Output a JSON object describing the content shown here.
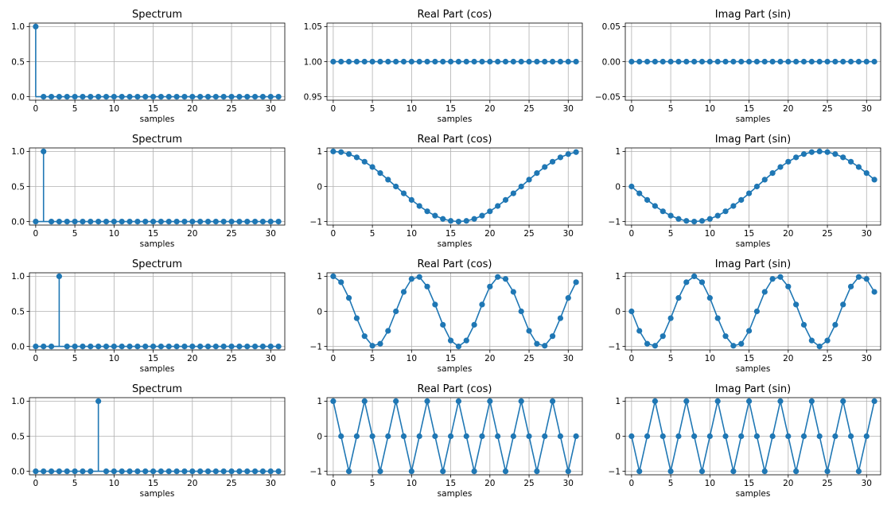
{
  "figure": {
    "panel_color": "#1f77b4",
    "grid": true
  },
  "chart_data": [
    {
      "type": "stem",
      "title": "Spectrum",
      "xlabel": "samples",
      "x_range": [
        0,
        31
      ],
      "xlim": [
        -0.8,
        31.8
      ],
      "ylim": [
        -0.05,
        1.05
      ],
      "xticks": [
        0,
        5,
        10,
        15,
        20,
        25,
        30
      ],
      "yticks": [
        0,
        0.5,
        1
      ],
      "ytick_labels": [
        "0.0",
        "0.5",
        "1.0"
      ],
      "k": 0,
      "values_at_k": 1,
      "values_elsewhere": 0
    },
    {
      "type": "line",
      "title": "Real Part (cos)",
      "xlabel": "samples",
      "x_range": [
        0,
        31
      ],
      "xlim": [
        -0.8,
        31.8
      ],
      "ylim": [
        0.945,
        1.055
      ],
      "xticks": [
        0,
        5,
        10,
        15,
        20,
        25,
        30
      ],
      "yticks": [
        0.95,
        1,
        1.05
      ],
      "ytick_labels": [
        "0.95",
        "1.00",
        "1.05"
      ],
      "k": 0,
      "func": "cos",
      "N": 32
    },
    {
      "type": "line",
      "title": "Imag Part (sin)",
      "xlabel": "samples",
      "x_range": [
        0,
        31
      ],
      "xlim": [
        -0.8,
        31.8
      ],
      "ylim": [
        -0.055,
        0.055
      ],
      "xticks": [
        0,
        5,
        10,
        15,
        20,
        25,
        30
      ],
      "yticks": [
        -0.05,
        0,
        0.05
      ],
      "ytick_labels": [
        "−0.05",
        "0.00",
        "0.05"
      ],
      "k": 0,
      "func": "-sin",
      "N": 32
    },
    {
      "type": "stem",
      "title": "Spectrum",
      "xlabel": "samples",
      "x_range": [
        0,
        31
      ],
      "xlim": [
        -0.8,
        31.8
      ],
      "ylim": [
        -0.05,
        1.05
      ],
      "xticks": [
        0,
        5,
        10,
        15,
        20,
        25,
        30
      ],
      "yticks": [
        0,
        0.5,
        1
      ],
      "ytick_labels": [
        "0.0",
        "0.5",
        "1.0"
      ],
      "k": 1,
      "values_at_k": 1,
      "values_elsewhere": 0
    },
    {
      "type": "line",
      "title": "Real Part (cos)",
      "xlabel": "samples",
      "x_range": [
        0,
        31
      ],
      "xlim": [
        -0.8,
        31.8
      ],
      "ylim": [
        -1.1,
        1.1
      ],
      "xticks": [
        0,
        5,
        10,
        15,
        20,
        25,
        30
      ],
      "yticks": [
        -1,
        0,
        1
      ],
      "ytick_labels": [
        "−1",
        "0",
        "1"
      ],
      "k": 1,
      "func": "cos",
      "N": 32
    },
    {
      "type": "line",
      "title": "Imag Part (sin)",
      "xlabel": "samples",
      "x_range": [
        0,
        31
      ],
      "xlim": [
        -0.8,
        31.8
      ],
      "ylim": [
        -1.1,
        1.1
      ],
      "xticks": [
        0,
        5,
        10,
        15,
        20,
        25,
        30
      ],
      "yticks": [
        -1,
        0,
        1
      ],
      "ytick_labels": [
        "−1",
        "0",
        "1"
      ],
      "k": 1,
      "func": "-sin",
      "N": 32
    },
    {
      "type": "stem",
      "title": "Spectrum",
      "xlabel": "samples",
      "x_range": [
        0,
        31
      ],
      "xlim": [
        -0.8,
        31.8
      ],
      "ylim": [
        -0.05,
        1.05
      ],
      "xticks": [
        0,
        5,
        10,
        15,
        20,
        25,
        30
      ],
      "yticks": [
        0,
        0.5,
        1
      ],
      "ytick_labels": [
        "0.0",
        "0.5",
        "1.0"
      ],
      "k": 3,
      "values_at_k": 1,
      "values_elsewhere": 0
    },
    {
      "type": "line",
      "title": "Real Part (cos)",
      "xlabel": "samples",
      "x_range": [
        0,
        31
      ],
      "xlim": [
        -0.8,
        31.8
      ],
      "ylim": [
        -1.1,
        1.1
      ],
      "xticks": [
        0,
        5,
        10,
        15,
        20,
        25,
        30
      ],
      "yticks": [
        -1,
        0,
        1
      ],
      "ytick_labels": [
        "−1",
        "0",
        "1"
      ],
      "k": 3,
      "func": "cos",
      "N": 32
    },
    {
      "type": "line",
      "title": "Imag Part (sin)",
      "xlabel": "samples",
      "x_range": [
        0,
        31
      ],
      "xlim": [
        -0.8,
        31.8
      ],
      "ylim": [
        -1.1,
        1.1
      ],
      "xticks": [
        0,
        5,
        10,
        15,
        20,
        25,
        30
      ],
      "yticks": [
        -1,
        0,
        1
      ],
      "ytick_labels": [
        "−1",
        "0",
        "1"
      ],
      "k": 3,
      "func": "-sin",
      "N": 32
    },
    {
      "type": "stem",
      "title": "Spectrum",
      "xlabel": "samples",
      "x_range": [
        0,
        31
      ],
      "xlim": [
        -0.8,
        31.8
      ],
      "ylim": [
        -0.05,
        1.05
      ],
      "xticks": [
        0,
        5,
        10,
        15,
        20,
        25,
        30
      ],
      "yticks": [
        0,
        0.5,
        1
      ],
      "ytick_labels": [
        "0.0",
        "0.5",
        "1.0"
      ],
      "k": 8,
      "values_at_k": 1,
      "values_elsewhere": 0
    },
    {
      "type": "line",
      "title": "Real Part (cos)",
      "xlabel": "samples",
      "x_range": [
        0,
        31
      ],
      "xlim": [
        -0.8,
        31.8
      ],
      "ylim": [
        -1.1,
        1.1
      ],
      "xticks": [
        0,
        5,
        10,
        15,
        20,
        25,
        30
      ],
      "yticks": [
        -1,
        0,
        1
      ],
      "ytick_labels": [
        "−1",
        "0",
        "1"
      ],
      "k": 8,
      "func": "cos",
      "N": 32
    },
    {
      "type": "line",
      "title": "Imag Part (sin)",
      "xlabel": "samples",
      "x_range": [
        0,
        31
      ],
      "xlim": [
        -0.8,
        31.8
      ],
      "ylim": [
        -1.1,
        1.1
      ],
      "xticks": [
        0,
        5,
        10,
        15,
        20,
        25,
        30
      ],
      "yticks": [
        -1,
        0,
        1
      ],
      "ytick_labels": [
        "−1",
        "0",
        "1"
      ],
      "k": 8,
      "func": "-sin",
      "N": 32
    }
  ]
}
